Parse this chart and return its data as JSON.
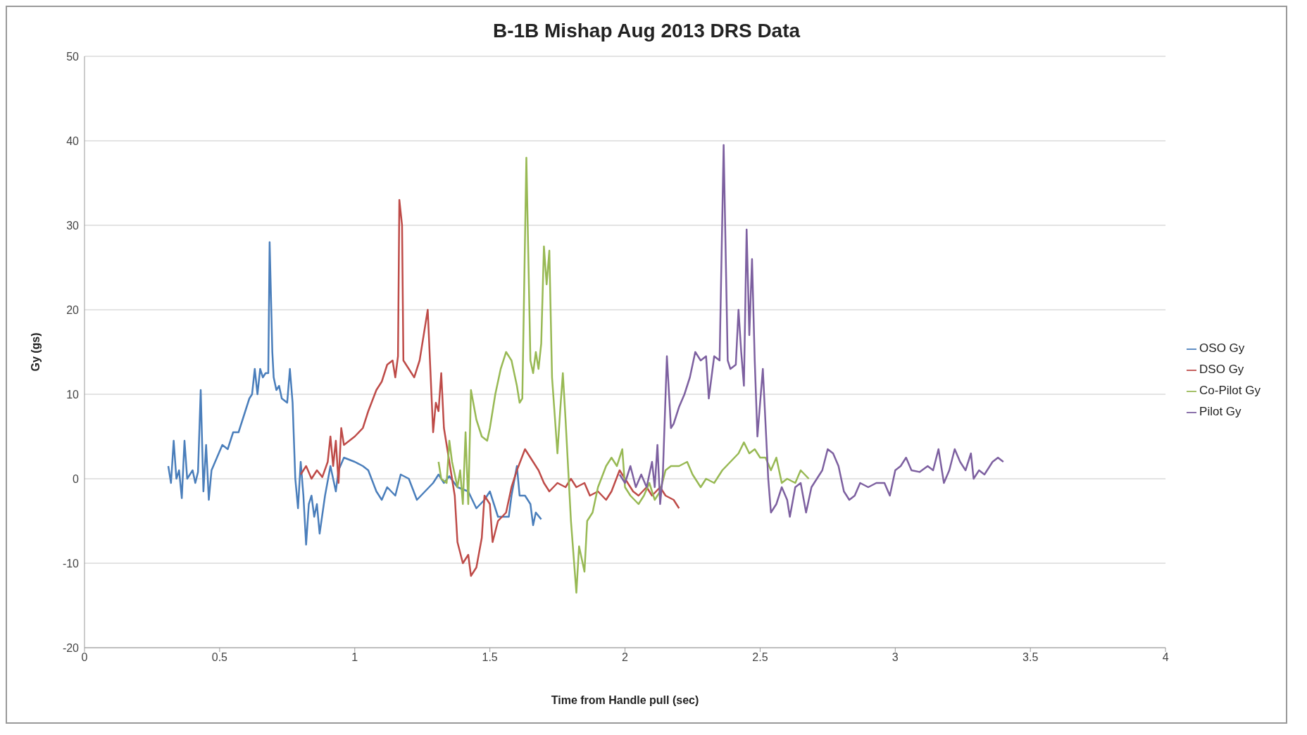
{
  "chart_data": {
    "type": "line",
    "title": "B-1B Mishap Aug 2013 DRS Data",
    "xlabel": "Time from Handle pull (sec)",
    "ylabel": "Gy (gs)",
    "xlim": [
      0,
      4
    ],
    "xticks": [
      0,
      0.5,
      1,
      1.5,
      2,
      2.5,
      3,
      3.5,
      4
    ],
    "ylim": [
      -20,
      50
    ],
    "yticks": [
      -20,
      -10,
      0,
      10,
      20,
      30,
      40,
      50
    ],
    "grid": "y",
    "legend": "right",
    "marker": "none",
    "line_style": "solid",
    "series": [
      {
        "name": "OSO Gy",
        "color": "#4a7ebb",
        "x": [
          0.31,
          0.32,
          0.33,
          0.34,
          0.35,
          0.36,
          0.37,
          0.38,
          0.4,
          0.41,
          0.42,
          0.43,
          0.44,
          0.45,
          0.46,
          0.47,
          0.49,
          0.51,
          0.53,
          0.55,
          0.57,
          0.59,
          0.61,
          0.62,
          0.63,
          0.64,
          0.65,
          0.66,
          0.67,
          0.68,
          0.685,
          0.695,
          0.7,
          0.71,
          0.72,
          0.73,
          0.75,
          0.76,
          0.77,
          0.78,
          0.79,
          0.8,
          0.81,
          0.82,
          0.83,
          0.84,
          0.85,
          0.86,
          0.87,
          0.89,
          0.91,
          0.92,
          0.93,
          0.94,
          0.96,
          1.0,
          1.03,
          1.05,
          1.08,
          1.1,
          1.12,
          1.15,
          1.17,
          1.2,
          1.23,
          1.26,
          1.29,
          1.31,
          1.33,
          1.35,
          1.38,
          1.42,
          1.45,
          1.48,
          1.5,
          1.53,
          1.57,
          1.58,
          1.6,
          1.61,
          1.63,
          1.65,
          1.66,
          1.67,
          1.69
        ],
        "values": [
          1.5,
          -0.5,
          4.5,
          0,
          1,
          -2.3,
          4.5,
          0,
          1,
          -0.5,
          0.8,
          10.5,
          -1.5,
          4,
          -2.5,
          1,
          2.5,
          4,
          3.5,
          5.5,
          5.5,
          7.5,
          9.5,
          10,
          13,
          10,
          13,
          12,
          12.5,
          12.5,
          28,
          15,
          12,
          10.5,
          11,
          9.5,
          9,
          13,
          9,
          0,
          -3.5,
          2,
          -2,
          -7.8,
          -3,
          -2,
          -4.5,
          -3,
          -6.5,
          -2,
          1.5,
          0,
          -1.5,
          1,
          2.5,
          2,
          1.5,
          1,
          -1.5,
          -2.5,
          -1,
          -2,
          0.5,
          0,
          -2.5,
          -1.5,
          -0.5,
          0.5,
          -0.5,
          0.3,
          -1,
          -1.5,
          -3.5,
          -2.5,
          -1.5,
          -4.5,
          -4.5,
          -2,
          1.5,
          -2,
          -2,
          -3,
          -5.5,
          -4,
          -4.8
        ]
      },
      {
        "name": "DSO Gy",
        "color": "#be4b48",
        "x": [
          0.8,
          0.82,
          0.84,
          0.86,
          0.88,
          0.9,
          0.91,
          0.92,
          0.93,
          0.94,
          0.95,
          0.96,
          1.0,
          1.03,
          1.05,
          1.08,
          1.1,
          1.12,
          1.14,
          1.15,
          1.16,
          1.165,
          1.175,
          1.18,
          1.2,
          1.22,
          1.24,
          1.26,
          1.27,
          1.29,
          1.3,
          1.31,
          1.32,
          1.33,
          1.35,
          1.37,
          1.38,
          1.4,
          1.42,
          1.43,
          1.45,
          1.47,
          1.48,
          1.5,
          1.51,
          1.53,
          1.56,
          1.58,
          1.6,
          1.63,
          1.66,
          1.68,
          1.7,
          1.72,
          1.75,
          1.78,
          1.8,
          1.82,
          1.85,
          1.87,
          1.9,
          1.93,
          1.95,
          1.98,
          2.0,
          2.03,
          2.05,
          2.08,
          2.1,
          2.13,
          2.15,
          2.18,
          2.2
        ],
        "values": [
          0.5,
          1.5,
          0,
          1,
          0.2,
          2,
          5,
          1.5,
          4.5,
          -0.5,
          6,
          4,
          5,
          6,
          8,
          10.5,
          11.5,
          13.5,
          14,
          12,
          14.5,
          33,
          30,
          14,
          13,
          12,
          14,
          18,
          20,
          5.5,
          9,
          8,
          12.5,
          6,
          2,
          -2,
          -7.5,
          -10,
          -9,
          -11.5,
          -10.5,
          -7,
          -2,
          -3,
          -7.5,
          -5,
          -4,
          -1,
          1,
          3.5,
          2,
          1,
          -0.5,
          -1.5,
          -0.5,
          -1,
          0,
          -1,
          -0.5,
          -2,
          -1.5,
          -2.5,
          -1.5,
          1,
          0,
          -1.5,
          -2,
          -1,
          -2,
          -1,
          -2,
          -2.5,
          -3.5
        ]
      },
      {
        "name": "Co-Pilot Gy",
        "color": "#98b954",
        "x": [
          1.31,
          1.32,
          1.34,
          1.35,
          1.36,
          1.38,
          1.39,
          1.4,
          1.41,
          1.42,
          1.43,
          1.45,
          1.47,
          1.49,
          1.5,
          1.52,
          1.54,
          1.56,
          1.58,
          1.6,
          1.61,
          1.62,
          1.635,
          1.65,
          1.66,
          1.67,
          1.68,
          1.69,
          1.7,
          1.71,
          1.72,
          1.73,
          1.75,
          1.76,
          1.77,
          1.78,
          1.8,
          1.82,
          1.83,
          1.85,
          1.86,
          1.88,
          1.9,
          1.93,
          1.95,
          1.97,
          1.99,
          2.0,
          2.02,
          2.05,
          2.07,
          2.09,
          2.11,
          2.13,
          2.15,
          2.17,
          2.2,
          2.23,
          2.25,
          2.28,
          2.3,
          2.33,
          2.36,
          2.39,
          2.42,
          2.44,
          2.46,
          2.48,
          2.5,
          2.52,
          2.54,
          2.56,
          2.58,
          2.6,
          2.63,
          2.65,
          2.68
        ],
        "values": [
          2,
          0,
          -0.5,
          4.5,
          2,
          -1,
          1,
          -3,
          5.5,
          -3,
          10.5,
          7,
          5,
          4.5,
          6,
          10,
          13,
          15,
          14,
          11,
          9,
          9.5,
          38,
          14,
          12.5,
          15,
          13,
          16,
          27.5,
          23,
          27,
          12,
          3,
          8,
          12.5,
          7,
          -5,
          -13.5,
          -8,
          -11,
          -5,
          -4,
          -1,
          1.5,
          2.5,
          1.5,
          3.5,
          -1,
          -2,
          -3,
          -2,
          -0.5,
          -2.5,
          -1.5,
          1,
          1.5,
          1.5,
          2,
          0.5,
          -1,
          0,
          -0.5,
          1,
          2,
          3,
          4.3,
          3,
          3.5,
          2.5,
          2.5,
          1,
          2.5,
          -0.5,
          0,
          -0.5,
          1,
          0
        ]
      },
      {
        "name": "Pilot Gy",
        "color": "#7d60a0",
        "x": [
          1.98,
          2.0,
          2.02,
          2.04,
          2.06,
          2.08,
          2.1,
          2.11,
          2.12,
          2.13,
          2.14,
          2.155,
          2.17,
          2.18,
          2.2,
          2.22,
          2.24,
          2.25,
          2.26,
          2.28,
          2.3,
          2.31,
          2.33,
          2.35,
          2.365,
          2.38,
          2.39,
          2.41,
          2.42,
          2.43,
          2.44,
          2.45,
          2.46,
          2.47,
          2.48,
          2.49,
          2.51,
          2.53,
          2.54,
          2.56,
          2.58,
          2.6,
          2.61,
          2.63,
          2.65,
          2.67,
          2.69,
          2.71,
          2.73,
          2.75,
          2.77,
          2.79,
          2.81,
          2.83,
          2.85,
          2.87,
          2.9,
          2.93,
          2.96,
          2.98,
          3.0,
          3.02,
          3.04,
          3.06,
          3.09,
          3.12,
          3.14,
          3.16,
          3.18,
          3.2,
          3.22,
          3.24,
          3.26,
          3.28,
          3.29,
          3.31,
          3.33,
          3.36,
          3.38,
          3.4
        ],
        "values": [
          0.5,
          -0.5,
          1.5,
          -1,
          0.5,
          -1,
          2,
          -1,
          4,
          -3,
          0.5,
          14.5,
          6,
          6.5,
          8.5,
          10,
          12,
          13.5,
          15,
          14,
          14.5,
          9.5,
          14.5,
          14,
          39.5,
          14,
          13,
          13.5,
          20,
          15,
          11,
          29.5,
          17,
          26,
          14,
          5,
          13,
          0,
          -4,
          -3,
          -1,
          -2.5,
          -4.5,
          -1,
          -0.5,
          -4,
          -1,
          0,
          1,
          3.5,
          3,
          1.5,
          -1.5,
          -2.5,
          -2,
          -0.5,
          -1,
          -0.5,
          -0.5,
          -2,
          1,
          1.5,
          2.5,
          1,
          0.8,
          1.5,
          1,
          3.5,
          -0.5,
          1,
          3.5,
          2,
          1,
          3,
          0,
          1,
          0.5,
          2,
          2.5,
          2
        ]
      }
    ]
  }
}
